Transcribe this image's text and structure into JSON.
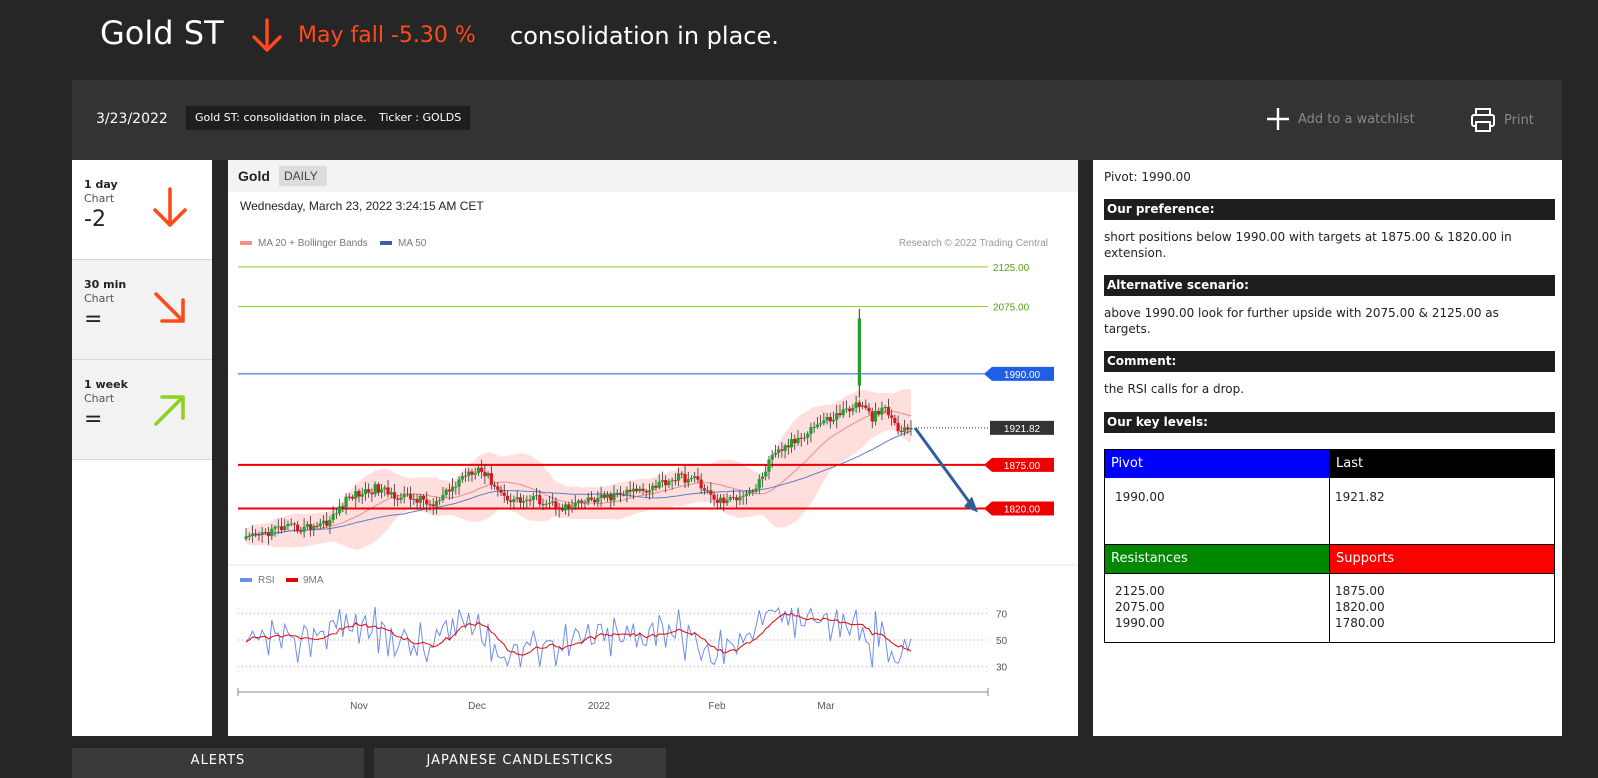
{
  "header": {
    "title": "Gold ST",
    "direction_icon": "arrow-down-icon",
    "forecast": "May fall -5.30 %",
    "summary": "consolidation in place."
  },
  "toolbar": {
    "date": "3/23/2022",
    "tag_title": "Gold ST: consolidation in place.",
    "tag_ticker": "Ticker : GOLDS",
    "watchlist_label": "Add to a watchlist",
    "print_label": "Print"
  },
  "timeframes": [
    {
      "name": "1 day",
      "label": "Chart",
      "score": "-2",
      "icon": "arrow-down-icon",
      "color": "#ff4a1c"
    },
    {
      "name": "30 min",
      "label": "Chart",
      "score": "=",
      "icon": "arrow-down-right-icon",
      "color": "#ff4a1c"
    },
    {
      "name": "1 week",
      "label": "Chart",
      "score": "=",
      "icon": "arrow-up-right-icon",
      "color": "#8ed11f"
    }
  ],
  "chart": {
    "instrument": "Gold",
    "period": "DAILY",
    "timestamp": "Wednesday, March 23, 2022 3:24:15 AM CET",
    "legend_ma20": "MA 20 + Bollinger Bands",
    "legend_ma50": "MA 50",
    "copyright": "Research © 2022 Trading Central",
    "rsi_legend": "RSI",
    "rsi_ma_legend": "9MA"
  },
  "chart_data": {
    "type": "candlestick",
    "ylim": [
      1755,
      2140
    ],
    "price_levels": [
      {
        "label": "2125.00",
        "value": 2125,
        "color": "#8ed11f",
        "kind": "resistance"
      },
      {
        "label": "2075.00",
        "value": 2075,
        "color": "#8ed11f",
        "kind": "resistance"
      },
      {
        "label": "1990.00",
        "value": 1990,
        "color": "#1f5fe8",
        "kind": "pivot"
      },
      {
        "label": "1921.82",
        "value": 1921.82,
        "color": "#333333",
        "kind": "last"
      },
      {
        "label": "1875.00",
        "value": 1875,
        "color": "#ee0000",
        "kind": "support"
      },
      {
        "label": "1820.00",
        "value": 1820,
        "color": "#ee0000",
        "kind": "support"
      }
    ],
    "x_labels": [
      "Nov",
      "Dec",
      "2022",
      "Feb",
      "Mar"
    ],
    "rsi_ticks": [
      "70",
      "50",
      "30"
    ],
    "rsi_ylim": [
      20,
      80
    ],
    "projection": {
      "from": 1921.82,
      "to": 1820
    }
  },
  "analysis": {
    "pivot_line": "Pivot: 1990.00",
    "preference_title": "Our preference:",
    "preference_text": "short positions below 1990.00 with targets at 1875.00 & 1820.00 in extension.",
    "alternative_title": "Alternative scenario:",
    "alternative_text": "above 1990.00 look for further upside with 2075.00 & 2125.00 as targets.",
    "comment_title": "Comment:",
    "comment_text": "the RSI calls for a drop.",
    "key_levels_title": "Our key levels:",
    "key_levels": {
      "pivot_label": "Pivot",
      "pivot_value": "1990.00",
      "last_label": "Last",
      "last_value": "1921.82",
      "resistances_label": "Resistances",
      "resistances": [
        "2125.00",
        "2075.00",
        "1990.00"
      ],
      "supports_label": "Supports",
      "supports": [
        "1875.00",
        "1820.00",
        "1780.00"
      ],
      "colors": {
        "pivot": "#0000ff",
        "last": "#000000",
        "resistances": "#008800",
        "supports": "#ff0000"
      }
    }
  },
  "bottom_tabs": [
    "ALERTS",
    "JAPANESE CANDLESTICKS"
  ]
}
